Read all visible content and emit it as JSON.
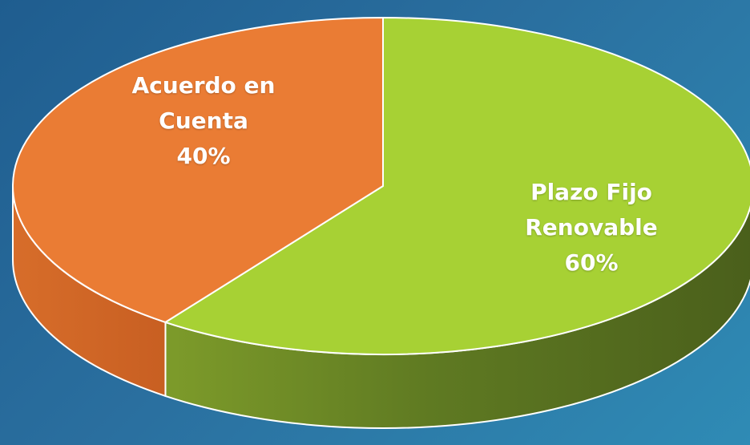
{
  "chart_data": {
    "type": "pie",
    "style": "3d",
    "title": "",
    "series": [
      {
        "name": "",
        "values": [
          {
            "label_lines": [
              "Acuerdo en",
              "Cuenta"
            ],
            "percent_label": "40%",
            "value": 40,
            "color": "#ea7c34"
          },
          {
            "label_lines": [
              "Plazo Fijo",
              "Renovable"
            ],
            "percent_label": "60%",
            "value": 60,
            "color": "#a7d134"
          }
        ]
      }
    ],
    "categories": [
      "Acuerdo en Cuenta",
      "Plazo Fijo Renovable"
    ],
    "values": [
      40,
      60
    ],
    "legend": "none",
    "data_labels": "inside"
  }
}
